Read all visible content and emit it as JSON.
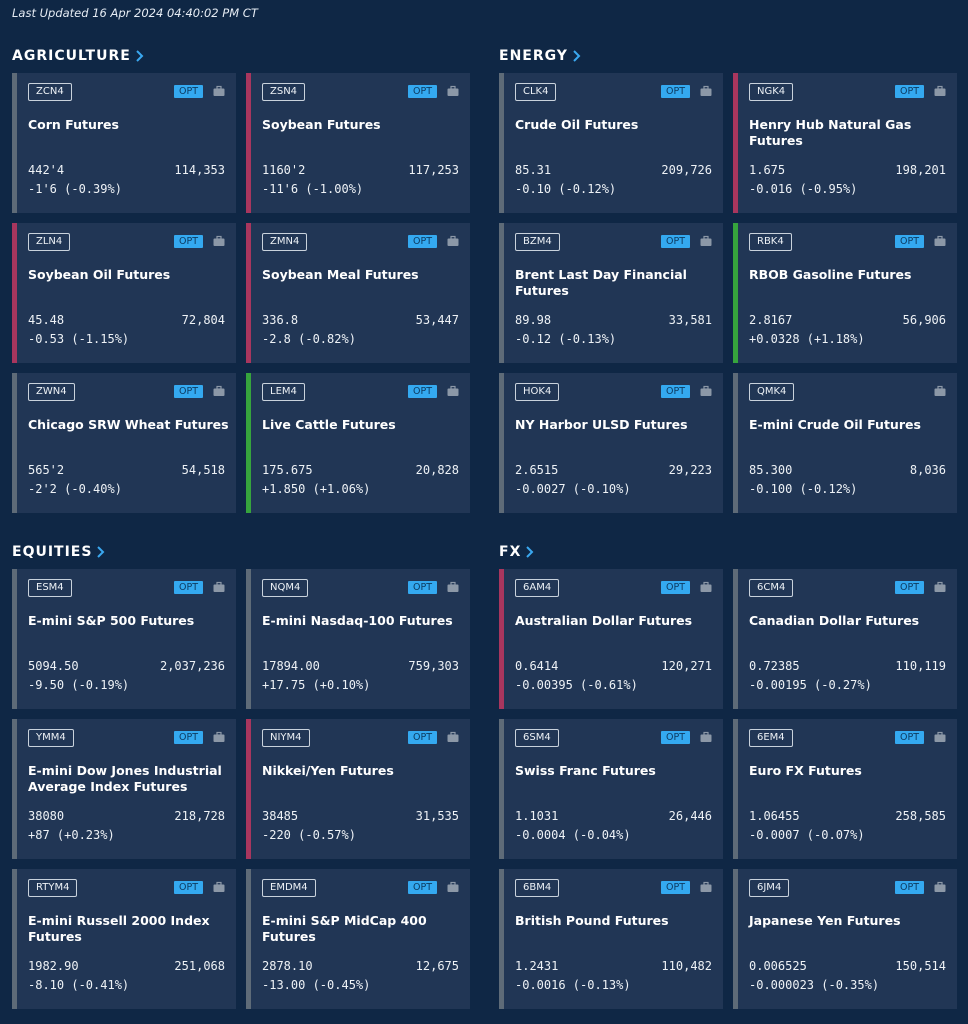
{
  "last_updated": "Last Updated 16 Apr 2024 04:40:02 PM CT",
  "colors": {
    "down": "#a8365e",
    "flat": "#5e6b78",
    "up": "#36a43d",
    "opt": "#34a9f0"
  },
  "sections": [
    {
      "title": "AGRICULTURE",
      "cards": [
        {
          "symbol": "ZCN4",
          "opt": "OPT",
          "name": "Corn Futures",
          "price": "442'4",
          "volume": "114,353",
          "change": "-1'6 (-0.39%)",
          "trend": "flat"
        },
        {
          "symbol": "ZSN4",
          "opt": "OPT",
          "name": "Soybean Futures",
          "price": "1160'2",
          "volume": "117,253",
          "change": "-11'6 (-1.00%)",
          "trend": "down"
        },
        {
          "symbol": "ZLN4",
          "opt": "OPT",
          "name": "Soybean Oil Futures",
          "price": "45.48",
          "volume": "72,804",
          "change": "-0.53 (-1.15%)",
          "trend": "down"
        },
        {
          "symbol": "ZMN4",
          "opt": "OPT",
          "name": "Soybean Meal Futures",
          "price": "336.8",
          "volume": "53,447",
          "change": "-2.8 (-0.82%)",
          "trend": "down"
        },
        {
          "symbol": "ZWN4",
          "opt": "OPT",
          "name": "Chicago SRW Wheat Futures",
          "price": "565'2",
          "volume": "54,518",
          "change": "-2'2 (-0.40%)",
          "trend": "flat"
        },
        {
          "symbol": "LEM4",
          "opt": "OPT",
          "name": "Live Cattle Futures",
          "price": "175.675",
          "volume": "20,828",
          "change": "+1.850 (+1.06%)",
          "trend": "up"
        }
      ]
    },
    {
      "title": "ENERGY",
      "cards": [
        {
          "symbol": "CLK4",
          "opt": "OPT",
          "name": "Crude Oil Futures",
          "price": "85.31",
          "volume": "209,726",
          "change": "-0.10 (-0.12%)",
          "trend": "flat"
        },
        {
          "symbol": "NGK4",
          "opt": "OPT",
          "name": "Henry Hub Natural Gas Futures",
          "price": "1.675",
          "volume": "198,201",
          "change": "-0.016 (-0.95%)",
          "trend": "down"
        },
        {
          "symbol": "BZM4",
          "opt": "OPT",
          "name": "Brent Last Day Financial Futures",
          "price": "89.98",
          "volume": "33,581",
          "change": "-0.12 (-0.13%)",
          "trend": "flat"
        },
        {
          "symbol": "RBK4",
          "opt": "OPT",
          "name": "RBOB Gasoline Futures",
          "price": "2.8167",
          "volume": "56,906",
          "change": "+0.0328 (+1.18%)",
          "trend": "up"
        },
        {
          "symbol": "HOK4",
          "opt": "OPT",
          "name": "NY Harbor ULSD Futures",
          "price": "2.6515",
          "volume": "29,223",
          "change": "-0.0027 (-0.10%)",
          "trend": "flat"
        },
        {
          "symbol": "QMK4",
          "opt": "",
          "name": "E-mini Crude Oil Futures",
          "price": "85.300",
          "volume": "8,036",
          "change": "-0.100 (-0.12%)",
          "trend": "flat"
        }
      ]
    },
    {
      "title": "EQUITIES",
      "cards": [
        {
          "symbol": "ESM4",
          "opt": "OPT",
          "name": "E-mini S&P 500 Futures",
          "price": "5094.50",
          "volume": "2,037,236",
          "change": "-9.50 (-0.19%)",
          "trend": "flat"
        },
        {
          "symbol": "NQM4",
          "opt": "OPT",
          "name": "E-mini Nasdaq-100 Futures",
          "price": "17894.00",
          "volume": "759,303",
          "change": "+17.75 (+0.10%)",
          "trend": "flat"
        },
        {
          "symbol": "YMM4",
          "opt": "OPT",
          "name": "E-mini Dow Jones Industrial Average Index Futures",
          "price": "38080",
          "volume": "218,728",
          "change": "+87 (+0.23%)",
          "trend": "flat"
        },
        {
          "symbol": "NIYM4",
          "opt": "OPT",
          "name": "Nikkei/Yen Futures",
          "price": "38485",
          "volume": "31,535",
          "change": "-220 (-0.57%)",
          "trend": "down"
        },
        {
          "symbol": "RTYM4",
          "opt": "OPT",
          "name": "E-mini  Russell 2000 Index Futures",
          "price": "1982.90",
          "volume": "251,068",
          "change": "-8.10 (-0.41%)",
          "trend": "flat"
        },
        {
          "symbol": "EMDM4",
          "opt": "OPT",
          "name": "E-mini S&P MidCap 400 Futures",
          "price": "2878.10",
          "volume": "12,675",
          "change": "-13.00 (-0.45%)",
          "trend": "flat"
        }
      ]
    },
    {
      "title": "FX",
      "cards": [
        {
          "symbol": "6AM4",
          "opt": "OPT",
          "name": "Australian Dollar Futures",
          "price": "0.6414",
          "volume": "120,271",
          "change": "-0.00395 (-0.61%)",
          "trend": "down"
        },
        {
          "symbol": "6CM4",
          "opt": "OPT",
          "name": "Canadian Dollar Futures",
          "price": "0.72385",
          "volume": "110,119",
          "change": "-0.00195 (-0.27%)",
          "trend": "flat"
        },
        {
          "symbol": "6SM4",
          "opt": "OPT",
          "name": "Swiss Franc Futures",
          "price": "1.1031",
          "volume": "26,446",
          "change": "-0.0004 (-0.04%)",
          "trend": "flat"
        },
        {
          "symbol": "6EM4",
          "opt": "OPT",
          "name": "Euro FX Futures",
          "price": "1.06455",
          "volume": "258,585",
          "change": "-0.0007 (-0.07%)",
          "trend": "flat"
        },
        {
          "symbol": "6BM4",
          "opt": "OPT",
          "name": "British Pound Futures",
          "price": "1.2431",
          "volume": "110,482",
          "change": "-0.0016 (-0.13%)",
          "trend": "flat"
        },
        {
          "symbol": "6JM4",
          "opt": "OPT",
          "name": "Japanese Yen Futures",
          "price": "0.006525",
          "volume": "150,514",
          "change": "-0.000023 (-0.35%)",
          "trend": "flat"
        }
      ]
    }
  ]
}
